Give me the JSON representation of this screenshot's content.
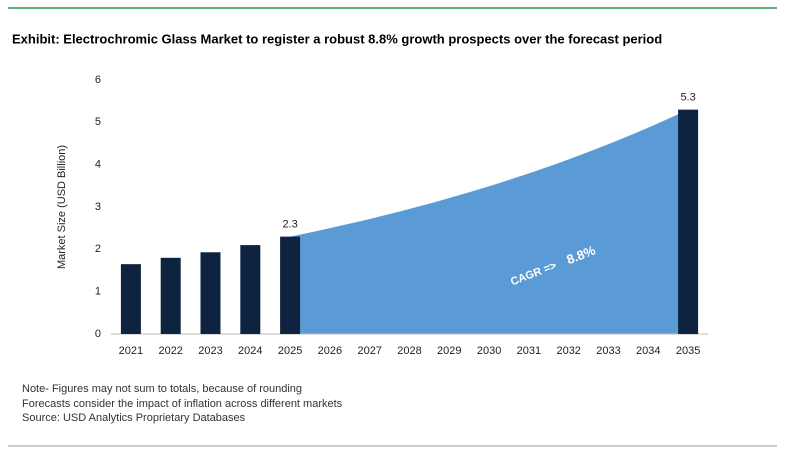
{
  "chart_data": {
    "type": "bar",
    "title": "Exhibit: Electrochromic Glass Market to register a robust 8.8% growth prospects over the forecast period",
    "y_label": "Market Size (USD Billion)",
    "categories": [
      "2021",
      "2022",
      "2023",
      "2024",
      "2025",
      "2026",
      "2027",
      "2028",
      "2029",
      "2030",
      "2031",
      "2032",
      "2033",
      "2034",
      "2035"
    ],
    "values": [
      1.65,
      1.8,
      1.93,
      2.1,
      2.3,
      null,
      null,
      null,
      null,
      null,
      null,
      null,
      null,
      null,
      5.3
    ],
    "value_labels": [
      null,
      null,
      null,
      null,
      "2.3",
      null,
      null,
      null,
      null,
      null,
      null,
      null,
      null,
      null,
      "5.3"
    ],
    "color": "#0d2340",
    "area_color": "#5b9bd5",
    "annotation": {
      "prefix": "CAGR =>",
      "value": "8.8%"
    },
    "ylim": [
      0,
      6
    ],
    "yticks": [
      0,
      1,
      2,
      3,
      4,
      5,
      6
    ],
    "grid": false,
    "notes": [
      "Note- Figures may not sum to totals, because of rounding",
      "Forecasts consider the impact of inflation across different markets",
      "Source: USD Analytics Proprietary Databases"
    ]
  }
}
